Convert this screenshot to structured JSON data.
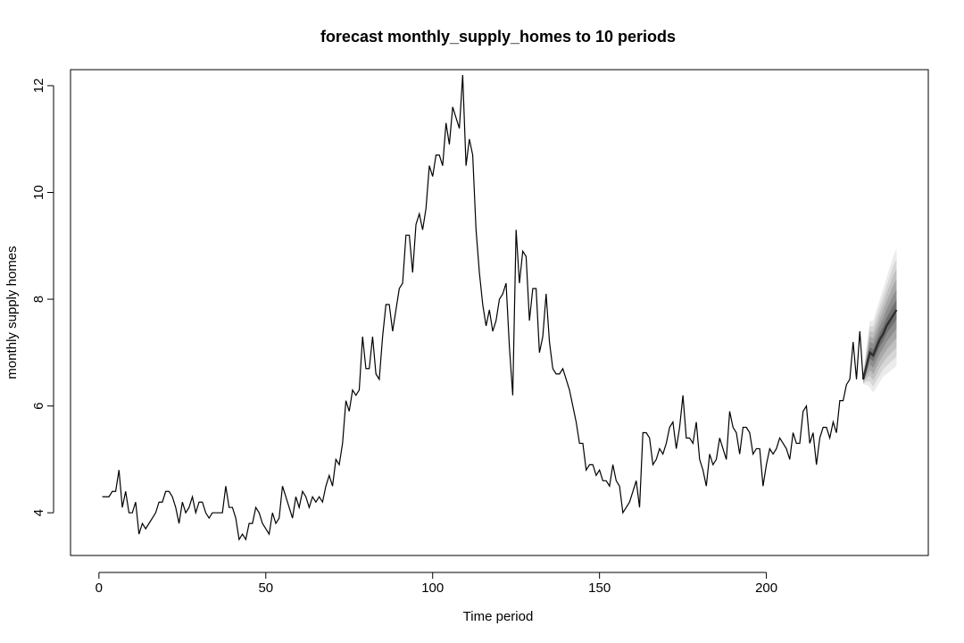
{
  "chart_data": {
    "type": "line",
    "title": "forecast monthly_supply_homes to 10 periods",
    "xlabel": "Time period",
    "ylabel": "monthly supply homes",
    "xlim": [
      1,
      239
    ],
    "ylim": [
      3.2,
      12.3
    ],
    "xticks": [
      0,
      50,
      100,
      150,
      200
    ],
    "yticks": [
      4,
      6,
      8,
      10,
      12
    ],
    "grid": false,
    "legend": "none",
    "series": [
      {
        "values": [
          4.3,
          4.3,
          4.3,
          4.4,
          4.4,
          4.8,
          4.1,
          4.4,
          4.0,
          4.0,
          4.2,
          3.6,
          3.8,
          3.7,
          3.8,
          3.9,
          4.0,
          4.2,
          4.2,
          4.4,
          4.4,
          4.3,
          4.1,
          3.8,
          4.2,
          4.0,
          4.1,
          4.3,
          4.0,
          4.2,
          4.2,
          4.0,
          3.9,
          4.0,
          4.0,
          4.0,
          4.0,
          4.5,
          4.1,
          4.1,
          3.9,
          3.5,
          3.6,
          3.5,
          3.8,
          3.8,
          4.1,
          4.0,
          3.8,
          3.7,
          3.6,
          4.0,
          3.8,
          3.9,
          4.5,
          4.3,
          4.1,
          3.9,
          4.3,
          4.1,
          4.4,
          4.3,
          4.1,
          4.3,
          4.2,
          4.3,
          4.2,
          4.5,
          4.7,
          4.5,
          5.0,
          4.9,
          5.3,
          6.1,
          5.9,
          6.3,
          6.2,
          6.3,
          7.3,
          6.7,
          6.7,
          7.3,
          6.6,
          6.5,
          7.3,
          7.9,
          7.9,
          7.4,
          7.8,
          8.2,
          8.3,
          9.2,
          9.2,
          8.5,
          9.4,
          9.6,
          9.3,
          9.7,
          10.5,
          10.3,
          10.7,
          10.7,
          10.5,
          11.3,
          10.9,
          11.6,
          11.4,
          11.2,
          12.2,
          10.5,
          11.0,
          10.7,
          9.3,
          8.5,
          7.9,
          7.5,
          7.8,
          7.4,
          7.6,
          8.0,
          8.1,
          8.3,
          7.1,
          6.2,
          9.3,
          8.3,
          8.9,
          8.8,
          7.6,
          8.2,
          8.2,
          7.0,
          7.3,
          8.1,
          7.2,
          6.7,
          6.6,
          6.6,
          6.7,
          6.5,
          6.3,
          6.0,
          5.7,
          5.3,
          5.3,
          4.8,
          4.9,
          4.9,
          4.7,
          4.8,
          4.6,
          4.6,
          4.5,
          4.9,
          4.6,
          4.5,
          4.0,
          4.1,
          4.2,
          4.4,
          4.6,
          4.1,
          5.5,
          5.5,
          5.4,
          4.9,
          5.0,
          5.2,
          5.1,
          5.3,
          5.6,
          5.7,
          5.2,
          5.6,
          6.2,
          5.4,
          5.4,
          5.3,
          5.7,
          5.0,
          4.8,
          4.5,
          5.1,
          4.9,
          5.0,
          5.4,
          5.2,
          5.0,
          5.9,
          5.6,
          5.5,
          5.1,
          5.6,
          5.6,
          5.5,
          5.1,
          5.2,
          5.2,
          4.5,
          4.9,
          5.2,
          5.1,
          5.2,
          5.4,
          5.3,
          5.2,
          5.0,
          5.5,
          5.3,
          5.3,
          5.9,
          6.0,
          5.3,
          5.5,
          4.9,
          5.4,
          5.6,
          5.6,
          5.4,
          5.7,
          5.5,
          6.1,
          6.1,
          6.4,
          6.5,
          7.2,
          6.5,
          7.4,
          6.5
        ]
      }
    ],
    "forecast": {
      "x": [
        229,
        230,
        231,
        232,
        233,
        234,
        235,
        236,
        237,
        238,
        239
      ],
      "mean": [
        6.5,
        6.75,
        7.0,
        6.95,
        7.1,
        7.25,
        7.35,
        7.5,
        7.6,
        7.7,
        7.8
      ],
      "upper": [
        6.6,
        7.1,
        7.6,
        7.6,
        7.8,
        8.0,
        8.2,
        8.4,
        8.6,
        8.8,
        8.95
      ],
      "lower": [
        6.4,
        6.4,
        6.35,
        6.25,
        6.35,
        6.45,
        6.55,
        6.6,
        6.65,
        6.7,
        6.75
      ],
      "band_colors": [
        "#ebebeb",
        "#d6d6d6",
        "#c0c0c0",
        "#a8a8a8",
        "#8e8e8e",
        "#707070"
      ],
      "line_color": "#303030"
    }
  }
}
